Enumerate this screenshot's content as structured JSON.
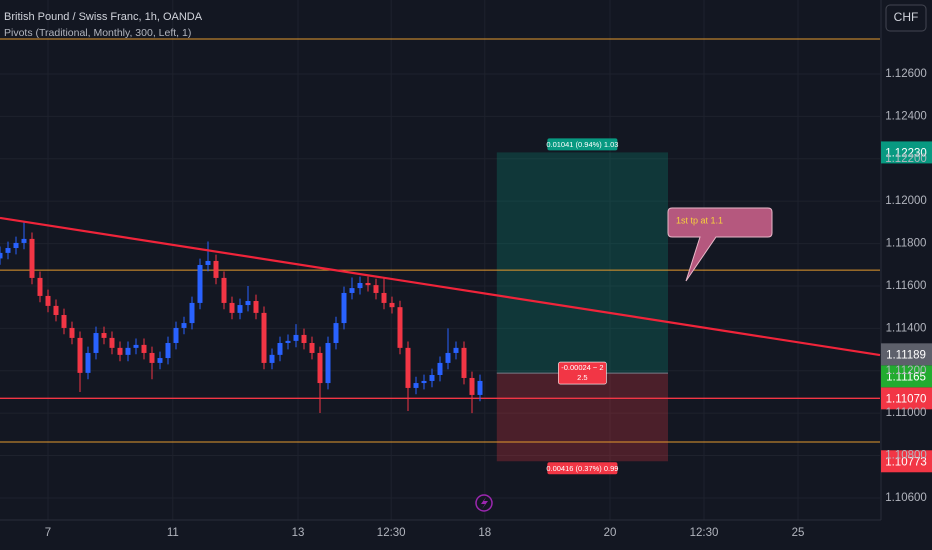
{
  "header": {
    "title": "British Pound / Swiss Franc, 1h, OANDA",
    "indicator": "Pivots (Traditional, Monthly, 300, Left, 1)",
    "currency": "CHF"
  },
  "chart_data": {
    "type": "candlestick",
    "x": [
      0,
      1,
      2,
      3,
      4,
      5,
      6,
      7,
      8,
      9,
      10,
      11,
      12,
      13,
      14,
      15,
      16,
      17,
      18,
      19,
      20,
      21,
      22,
      23,
      24,
      25,
      26,
      27,
      28,
      29,
      30,
      31,
      32,
      33,
      34,
      35,
      36,
      37,
      38,
      39,
      40,
      41,
      42,
      43,
      44,
      45,
      46,
      47,
      48,
      49,
      50,
      51,
      52,
      53,
      54,
      55,
      56,
      57,
      58,
      59,
      60
    ],
    "open": [
      1.1173,
      1.11756,
      1.11779,
      1.11803,
      1.11822,
      1.11638,
      1.11553,
      1.11506,
      1.11463,
      1.11402,
      1.11355,
      1.1119,
      1.11284,
      1.11378,
      1.11355,
      1.11308,
      1.11275,
      1.11308,
      1.11322,
      1.11284,
      1.11237,
      1.1126,
      1.11331,
      1.11402,
      1.11425,
      1.1152,
      1.11699,
      1.11718,
      1.11638,
      1.1152,
      1.11473,
      1.1151,
      1.11529,
      1.11473,
      1.11237,
      1.11275,
      1.11331,
      1.11341,
      1.11369,
      1.11331,
      1.11284,
      1.11142,
      1.11331,
      1.11425,
      1.11567,
      1.1159,
      1.11614,
      1.11604,
      1.11567,
      1.1152,
      1.115,
      1.11308,
      1.11119,
      1.11142,
      1.11152,
      1.1118,
      1.11237,
      1.11284,
      1.11308,
      1.11166,
      1.11086
    ],
    "high": [
      1.11786,
      1.11809,
      1.11833,
      1.119,
      1.11852,
      1.11668,
      1.11583,
      1.11536,
      1.11493,
      1.11432,
      1.11385,
      1.11314,
      1.11408,
      1.11408,
      1.11385,
      1.11338,
      1.11338,
      1.11352,
      1.11352,
      1.11314,
      1.1129,
      1.11361,
      1.11432,
      1.11455,
      1.1155,
      1.11729,
      1.1181,
      1.11748,
      1.11668,
      1.1155,
      1.1154,
      1.116,
      1.11559,
      1.11503,
      1.11305,
      1.11361,
      1.11371,
      1.1142,
      1.11399,
      1.11361,
      1.11314,
      1.11361,
      1.11455,
      1.11597,
      1.1164,
      1.11644,
      1.11644,
      1.11634,
      1.1164,
      1.1155,
      1.1153,
      1.11338,
      1.11172,
      1.11182,
      1.1121,
      1.11267,
      1.114,
      1.11338,
      1.11338,
      1.11196,
      1.11182
    ],
    "low": [
      1.117,
      1.11726,
      1.11749,
      1.11773,
      1.11608,
      1.11523,
      1.11476,
      1.11433,
      1.11372,
      1.11325,
      1.111,
      1.1116,
      1.11254,
      1.11325,
      1.11278,
      1.11245,
      1.11245,
      1.11278,
      1.11254,
      1.1116,
      1.11207,
      1.1123,
      1.11301,
      1.11372,
      1.11395,
      1.1149,
      1.11669,
      1.11608,
      1.1149,
      1.11443,
      1.11443,
      1.1148,
      1.11443,
      1.11207,
      1.11207,
      1.11245,
      1.11301,
      1.11311,
      1.11301,
      1.11254,
      1.11001,
      1.11112,
      1.11301,
      1.11395,
      1.11537,
      1.1156,
      1.11574,
      1.11537,
      1.1149,
      1.1147,
      1.11278,
      1.1101,
      1.11089,
      1.11112,
      1.11122,
      1.1115,
      1.11207,
      1.11254,
      1.11136,
      1.11,
      1.11056
    ],
    "close": [
      1.11756,
      1.11779,
      1.11803,
      1.11822,
      1.11638,
      1.11553,
      1.11506,
      1.11463,
      1.11402,
      1.11355,
      1.1119,
      1.11284,
      1.11378,
      1.11355,
      1.11308,
      1.11275,
      1.11308,
      1.11322,
      1.11284,
      1.11237,
      1.1126,
      1.11331,
      1.11402,
      1.11425,
      1.1152,
      1.11699,
      1.11718,
      1.11638,
      1.1152,
      1.11473,
      1.1151,
      1.11529,
      1.11473,
      1.11237,
      1.11275,
      1.11331,
      1.11341,
      1.11369,
      1.11331,
      1.11284,
      1.11142,
      1.11331,
      1.11425,
      1.11567,
      1.1159,
      1.11614,
      1.11604,
      1.11567,
      1.1152,
      1.115,
      1.11308,
      1.11119,
      1.11142,
      1.11152,
      1.1118,
      1.11237,
      1.11284,
      1.11308,
      1.11166,
      1.11086,
      1.11152
    ],
    "up_color": "#2962ff",
    "down_color": "#f23645",
    "xlim": [
      0,
      110
    ],
    "xticks": [
      {
        "value": 6,
        "label": "7"
      },
      {
        "value": 21.6,
        "label": "11"
      },
      {
        "value": 37.25,
        "label": "13"
      },
      {
        "value": 48.9,
        "label": "12:30"
      },
      {
        "value": 60.6,
        "label": "18"
      },
      {
        "value": 76.25,
        "label": "20"
      },
      {
        "value": 88,
        "label": "12:30"
      },
      {
        "value": 99.75,
        "label": "25"
      }
    ],
    "ylim": [
      1.10496,
      1.12949
    ],
    "yticks": [
      {
        "value": 1.126,
        "label": "1.12600"
      },
      {
        "value": 1.124,
        "label": "1.12400"
      },
      {
        "value": 1.122,
        "label": "1.12200"
      },
      {
        "value": 1.12,
        "label": "1.12000"
      },
      {
        "value": 1.118,
        "label": "1.11800"
      },
      {
        "value": 1.116,
        "label": "1.11600"
      },
      {
        "value": 1.114,
        "label": "1.11400"
      },
      {
        "value": 1.112,
        "label": "1.11200"
      },
      {
        "value": 1.11,
        "label": "1.11000"
      },
      {
        "value": 1.108,
        "label": "1.10800"
      },
      {
        "value": 1.106,
        "label": "1.10600"
      }
    ],
    "grid": true,
    "pivot_levels": [
      1.12765,
      1.11675,
      1.10864
    ],
    "pivot_color": "#e3992d",
    "support_level": {
      "value": 1.1107,
      "label": "1.11070"
    },
    "support_color": "#f23645",
    "trendline": {
      "x": [
        0,
        110
      ],
      "y": [
        1.11921,
        1.11274
      ],
      "color": "#f0243a"
    },
    "position": {
      "x": [
        62.1,
        83.5
      ],
      "entry": {
        "value": 1.11189,
        "label": "1.11189"
      },
      "target": {
        "value": 1.1223,
        "label": "1.12230"
      },
      "stop": {
        "value": 1.10773,
        "label": "1.10773"
      },
      "target_text": "0.01041 (0.94%) 1.03",
      "entry_text": [
        "-0.00024 ~ 2",
        "2.5"
      ],
      "stop_text": "0.00416 (0.37%) 0.99"
    },
    "last_price": {
      "value": 1.11165,
      "label": "1.11165"
    },
    "annotation": "1st tp at 1.1"
  }
}
